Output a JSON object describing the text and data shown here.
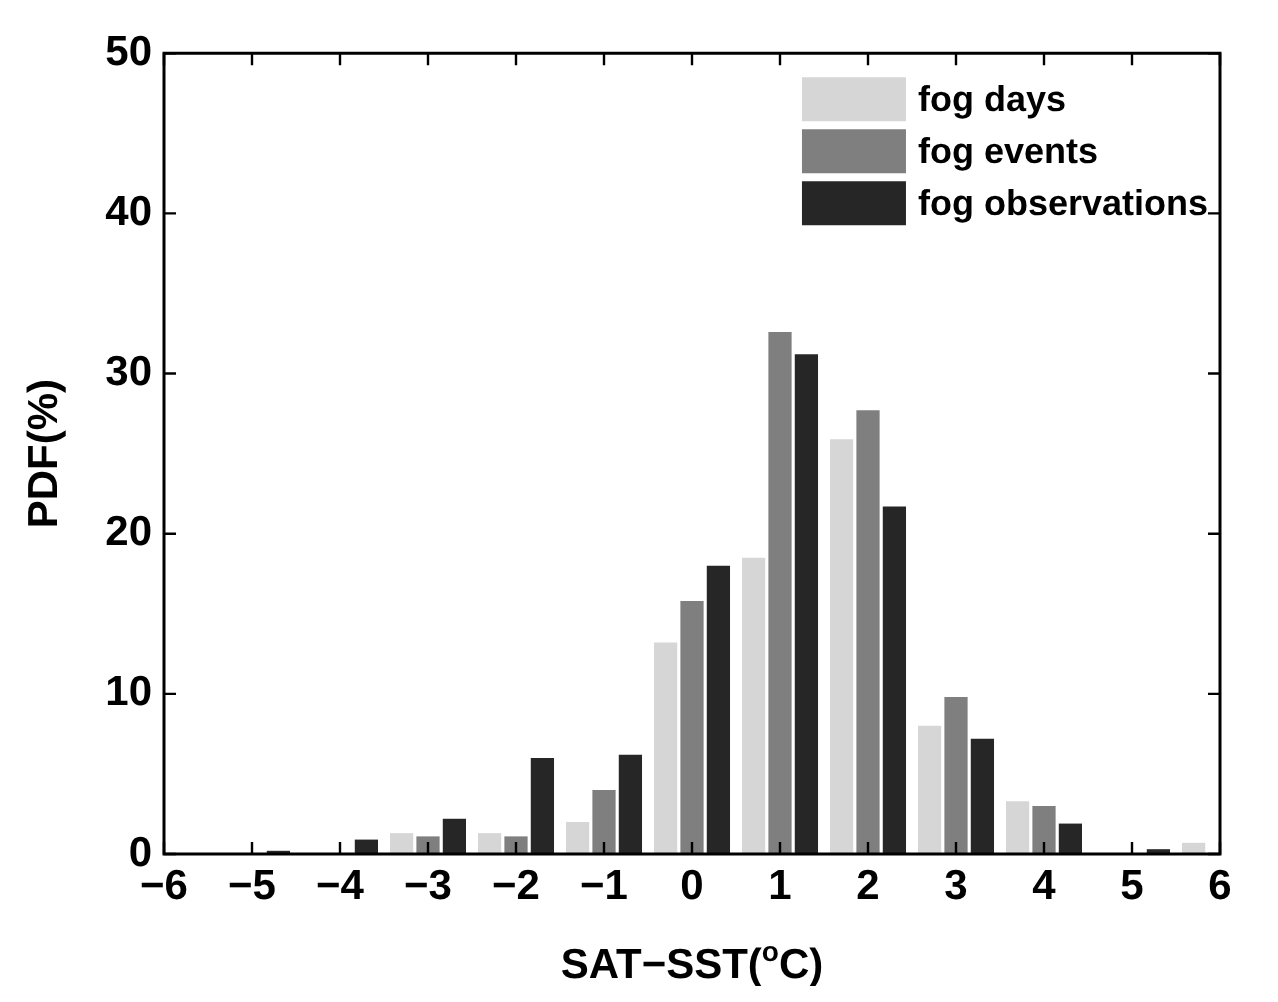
{
  "chart_data": {
    "type": "bar",
    "xlabel": "SAT−SST($^{o}$C)",
    "ylabel": "PDF(%)",
    "x": [
      -5,
      -4,
      -3,
      -2,
      -1,
      0,
      1,
      2,
      3,
      4,
      5,
      6
    ],
    "series": [
      {
        "name": "fog days",
        "color": "#d6d6d6",
        "values": [
          0,
          0,
          1.3,
          1.3,
          2.0,
          13.2,
          18.5,
          25.9,
          8.0,
          3.3,
          0,
          0.7
        ]
      },
      {
        "name": "fog events",
        "color": "#7f7f7f",
        "values": [
          0,
          0,
          1.1,
          1.1,
          4.0,
          15.8,
          32.6,
          27.7,
          9.8,
          3.0,
          0,
          0
        ]
      },
      {
        "name": "fog observations",
        "color": "#262626",
        "values": [
          0.2,
          0.9,
          2.2,
          6.0,
          6.2,
          18.0,
          31.2,
          21.7,
          7.2,
          1.9,
          0.3,
          0
        ]
      }
    ],
    "xlim": [
      -6,
      6
    ],
    "xticks": [
      -6,
      -5,
      -4,
      -3,
      -2,
      -1,
      0,
      1,
      2,
      3,
      4,
      5,
      6
    ],
    "ylim": [
      0,
      50
    ],
    "yticks": [
      0,
      10,
      20,
      30,
      40,
      50
    ],
    "grid": false,
    "legend": "top right"
  }
}
